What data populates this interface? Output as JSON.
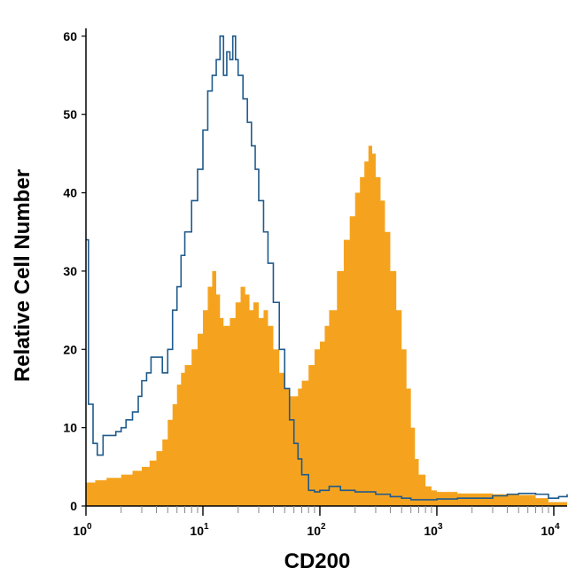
{
  "chart_data": {
    "type": "area",
    "title": "",
    "xlabel": "CD200",
    "ylabel": "Relative Cell Number",
    "x_scale": "log",
    "xlim": [
      1,
      13000
    ],
    "ylim": [
      0,
      61
    ],
    "grid": false,
    "legend": "none",
    "x_ticks": [
      {
        "value": 1,
        "base": "10",
        "exp": "0"
      },
      {
        "value": 10,
        "base": "10",
        "exp": "1"
      },
      {
        "value": 100,
        "base": "10",
        "exp": "2"
      },
      {
        "value": 1000,
        "base": "10",
        "exp": "3"
      },
      {
        "value": 10000,
        "base": "10",
        "exp": "4"
      }
    ],
    "y_ticks": [
      0,
      10,
      20,
      30,
      40,
      50,
      60
    ],
    "series": [
      {
        "style": "filled",
        "color": "#F5A31F",
        "points": [
          [
            1.0,
            3.0
          ],
          [
            1.2,
            3.3
          ],
          [
            1.5,
            3.6
          ],
          [
            2.0,
            4.0
          ],
          [
            2.5,
            4.5
          ],
          [
            3.0,
            5.0
          ],
          [
            3.5,
            5.8
          ],
          [
            4.0,
            7.0
          ],
          [
            4.5,
            8.5
          ],
          [
            5.0,
            11.0
          ],
          [
            5.5,
            13.0
          ],
          [
            6.0,
            15.5
          ],
          [
            6.5,
            17.0
          ],
          [
            7.0,
            18.0
          ],
          [
            8.0,
            20.0
          ],
          [
            9.0,
            22.0
          ],
          [
            10.0,
            25.0
          ],
          [
            11.0,
            28.0
          ],
          [
            12.0,
            30.0
          ],
          [
            13.0,
            27.0
          ],
          [
            14.0,
            24.0
          ],
          [
            15.0,
            23.0
          ],
          [
            17.0,
            24.0
          ],
          [
            19.0,
            26.0
          ],
          [
            21.0,
            28.0
          ],
          [
            23.0,
            27.0
          ],
          [
            25.0,
            25.0
          ],
          [
            27.0,
            26.0
          ],
          [
            30.0,
            24.0
          ],
          [
            33.0,
            25.0
          ],
          [
            36.0,
            23.0
          ],
          [
            40.0,
            20.0
          ],
          [
            45.0,
            17.0
          ],
          [
            50.0,
            15.0
          ],
          [
            55.0,
            14.0
          ],
          [
            60.0,
            14.0
          ],
          [
            65.0,
            15.0
          ],
          [
            70.0,
            16.0
          ],
          [
            80.0,
            18.0
          ],
          [
            90.0,
            20.0
          ],
          [
            100.0,
            21.0
          ],
          [
            110.0,
            23.0
          ],
          [
            120.0,
            25.0
          ],
          [
            140.0,
            30.0
          ],
          [
            160.0,
            34.0
          ],
          [
            180.0,
            37.0
          ],
          [
            200.0,
            40.0
          ],
          [
            220.0,
            42.0
          ],
          [
            240.0,
            44.0
          ],
          [
            260.0,
            46.0
          ],
          [
            280.0,
            45.0
          ],
          [
            300.0,
            42.0
          ],
          [
            330.0,
            39.0
          ],
          [
            360.0,
            35.0
          ],
          [
            400.0,
            30.0
          ],
          [
            450.0,
            25.0
          ],
          [
            500.0,
            20.0
          ],
          [
            550.0,
            15.0
          ],
          [
            600.0,
            10.0
          ],
          [
            650.0,
            6.0
          ],
          [
            700.0,
            4.0
          ],
          [
            800.0,
            2.5
          ],
          [
            900.0,
            2.0
          ],
          [
            1000.0,
            1.8
          ],
          [
            1500.0,
            1.6
          ],
          [
            2000.0,
            1.6
          ],
          [
            3000.0,
            1.5
          ],
          [
            4000.0,
            1.5
          ],
          [
            5000.0,
            1.4
          ],
          [
            7000.0,
            1.0
          ],
          [
            9000.0,
            0.5
          ],
          [
            13000.0,
            0.3
          ]
        ]
      },
      {
        "style": "outline",
        "color": "#1F5A8C",
        "points": [
          [
            1.0,
            34.0
          ],
          [
            1.05,
            13.0
          ],
          [
            1.15,
            8.0
          ],
          [
            1.25,
            6.5
          ],
          [
            1.4,
            9.0
          ],
          [
            1.6,
            9.0
          ],
          [
            1.8,
            9.5
          ],
          [
            2.0,
            10.0
          ],
          [
            2.2,
            11.0
          ],
          [
            2.5,
            12.0
          ],
          [
            2.8,
            14.0
          ],
          [
            3.0,
            16.0
          ],
          [
            3.3,
            17.0
          ],
          [
            3.6,
            19.0
          ],
          [
            4.0,
            19.0
          ],
          [
            4.5,
            17.0
          ],
          [
            5.0,
            20.0
          ],
          [
            5.5,
            25.0
          ],
          [
            6.0,
            28.0
          ],
          [
            6.5,
            32.0
          ],
          [
            7.0,
            35.0
          ],
          [
            8.0,
            39.0
          ],
          [
            9.0,
            43.0
          ],
          [
            10.0,
            48.0
          ],
          [
            11.0,
            53.0
          ],
          [
            12.0,
            55.0
          ],
          [
            13.0,
            57.0
          ],
          [
            14.0,
            60.0
          ],
          [
            15.0,
            55.0
          ],
          [
            16.0,
            58.0
          ],
          [
            17.0,
            57.0
          ],
          [
            18.0,
            60.0
          ],
          [
            19.0,
            57.0
          ],
          [
            20.0,
            55.0
          ],
          [
            22.0,
            52.0
          ],
          [
            24.0,
            49.0
          ],
          [
            26.0,
            46.0
          ],
          [
            28.0,
            43.0
          ],
          [
            30.0,
            39.0
          ],
          [
            33.0,
            35.0
          ],
          [
            36.0,
            31.0
          ],
          [
            40.0,
            26.0
          ],
          [
            45.0,
            20.0
          ],
          [
            50.0,
            15.0
          ],
          [
            55.0,
            11.0
          ],
          [
            60.0,
            8.0
          ],
          [
            65.0,
            6.0
          ],
          [
            70.0,
            4.0
          ],
          [
            80.0,
            2.0
          ],
          [
            90.0,
            1.8
          ],
          [
            100.0,
            2.0
          ],
          [
            120.0,
            2.5
          ],
          [
            150.0,
            2.0
          ],
          [
            200.0,
            1.8
          ],
          [
            300.0,
            1.5
          ],
          [
            400.0,
            1.2
          ],
          [
            500.0,
            1.0
          ],
          [
            600.0,
            0.8
          ],
          [
            800.0,
            0.8
          ],
          [
            1000.0,
            0.9
          ],
          [
            1500.0,
            1.0
          ],
          [
            2000.0,
            1.0
          ],
          [
            3000.0,
            1.3
          ],
          [
            4000.0,
            1.5
          ],
          [
            5000.0,
            1.6
          ],
          [
            7000.0,
            1.5
          ],
          [
            9000.0,
            1.0
          ],
          [
            11000.0,
            1.2
          ],
          [
            13000.0,
            1.5
          ]
        ]
      }
    ]
  }
}
